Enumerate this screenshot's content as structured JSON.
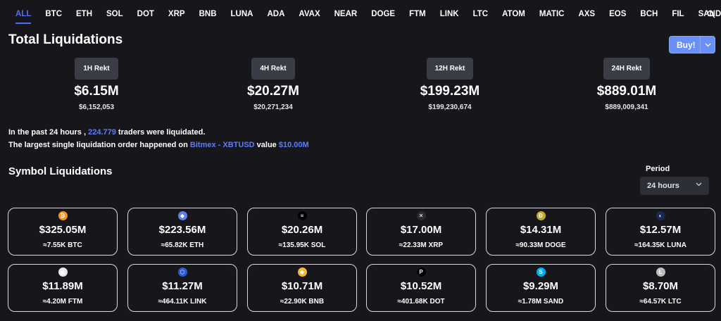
{
  "tabs": [
    "ALL",
    "BTC",
    "ETH",
    "SOL",
    "DOT",
    "XRP",
    "BNB",
    "LUNA",
    "ADA",
    "AVAX",
    "NEAR",
    "DOGE",
    "FTM",
    "LINK",
    "LTC",
    "ATOM",
    "MATIC",
    "AXS",
    "EOS",
    "BCH",
    "FIL",
    "SAND"
  ],
  "title": "Total Liquidations",
  "buy_label": "Buy!",
  "rekt": [
    {
      "label": "1H Rekt",
      "amount": "$6.15M",
      "exact": "$6,152,053"
    },
    {
      "label": "4H Rekt",
      "amount": "$20.27M",
      "exact": "$20,271,234"
    },
    {
      "label": "12H Rekt",
      "amount": "$199.23M",
      "exact": "$199,230,674"
    },
    {
      "label": "24H Rekt",
      "amount": "$889.01M",
      "exact": "$889,009,341"
    }
  ],
  "info": {
    "line1_pre": "In the past 24 hours ,",
    "traders": "224.779",
    "line1_post": "traders were liquidated.",
    "line2_pre": "The largest single liquidation order happened on",
    "exchange": "Bitmex - XBTUSD",
    "line2_mid": "value",
    "value": "$10.00M"
  },
  "symbol_title": "Symbol Liquidations",
  "period": {
    "label": "Period",
    "value": "24 hours"
  },
  "cards": [
    {
      "icon": "bitcoin-icon",
      "glyph": "₿",
      "color": "#f7931a",
      "amount": "$325.05M",
      "sub": "≈7.55K BTC"
    },
    {
      "icon": "ethereum-icon",
      "glyph": "◆",
      "color": "#627eea",
      "amount": "$223.56M",
      "sub": "≈65.82K ETH"
    },
    {
      "icon": "solana-icon",
      "glyph": "≡",
      "color": "#000000",
      "amount": "$20.26M",
      "sub": "≈135.95K SOL"
    },
    {
      "icon": "xrp-icon",
      "glyph": "✕",
      "color": "#2b2b2f",
      "amount": "$17.00M",
      "sub": "≈22.33M XRP"
    },
    {
      "icon": "dogecoin-icon",
      "glyph": "Ð",
      "color": "#c2a633",
      "amount": "$14.31M",
      "sub": "≈90.33M DOGE"
    },
    {
      "icon": "luna-icon",
      "glyph": "◐",
      "color": "#172852",
      "amount": "$12.57M",
      "sub": "≈164.35K LUNA"
    },
    {
      "icon": "fantom-icon",
      "glyph": "▣",
      "color": "#e8e8e8",
      "amount": "$11.89M",
      "sub": "≈4.20M FTM"
    },
    {
      "icon": "chainlink-icon",
      "glyph": "⬡",
      "color": "#2a5ada",
      "amount": "$11.27M",
      "sub": "≈464.11K LINK"
    },
    {
      "icon": "bnb-icon",
      "glyph": "◆",
      "color": "#f3ba2f",
      "amount": "$10.71M",
      "sub": "≈22.90K BNB"
    },
    {
      "icon": "polkadot-icon",
      "glyph": "P",
      "color": "#000000",
      "amount": "$10.52M",
      "sub": "≈401.68K DOT"
    },
    {
      "icon": "sandbox-icon",
      "glyph": "S",
      "color": "#00adef",
      "amount": "$9.29M",
      "sub": "≈1.78M SAND"
    },
    {
      "icon": "litecoin-icon",
      "glyph": "Ł",
      "color": "#bfbbbb",
      "amount": "$8.70M",
      "sub": "≈64.57K LTC"
    }
  ]
}
